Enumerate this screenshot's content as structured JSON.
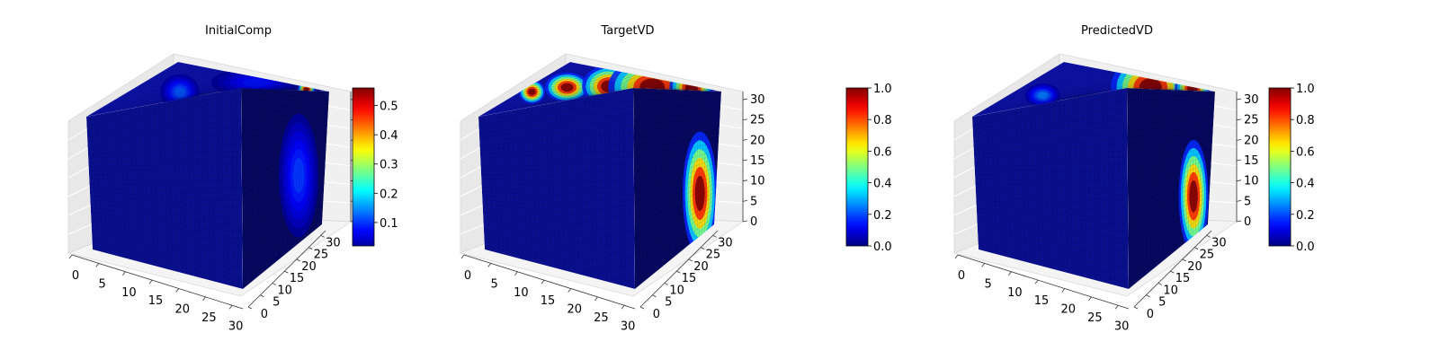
{
  "chart_data": [
    {
      "type": "3d-voxel",
      "title": "InitialComp",
      "colormap": "jet",
      "axes": {
        "x_ticks": [
          "0",
          "5",
          "10",
          "15",
          "20",
          "25",
          "30"
        ],
        "y_ticks": [
          "0",
          "5",
          "10",
          "15",
          "20",
          "25",
          "30"
        ],
        "z_ticks": [
          "",
          "",
          "",
          "",
          "",
          "",
          ""
        ],
        "range": [
          0,
          32
        ]
      },
      "colorbar": {
        "range": [
          0.02,
          0.56
        ],
        "ticks": [
          "0.1",
          "0.2",
          "0.3",
          "0.4",
          "0.5"
        ],
        "tick_values": [
          0.1,
          0.2,
          0.3,
          0.4,
          0.5
        ]
      },
      "hotspots": [
        {
          "face": "top",
          "u": 0.36,
          "v": 0.42,
          "value": 0.12,
          "su": 0.09,
          "sv": 0.12
        },
        {
          "face": "top",
          "u": 0.78,
          "v": 0.55,
          "value": 0.14,
          "su": 0.16,
          "sv": 0.18
        },
        {
          "face": "top",
          "u": 0.92,
          "v": 0.88,
          "value": 0.56,
          "su": 0.04,
          "sv": 0.05
        },
        {
          "face": "top",
          "u": 0.6,
          "v": 0.85,
          "value": 0.08,
          "su": 0.2,
          "sv": 0.1
        },
        {
          "face": "right",
          "u": 0.68,
          "v": 0.55,
          "value": 0.1,
          "su": 0.16,
          "sv": 0.22
        }
      ]
    },
    {
      "type": "3d-voxel",
      "title": "TargetVD",
      "colormap": "jet",
      "axes": {
        "x_ticks": [
          "0",
          "5",
          "10",
          "15",
          "20",
          "25",
          "30"
        ],
        "y_ticks": [
          "0",
          "5",
          "10",
          "15",
          "20",
          "25",
          "30"
        ],
        "z_ticks": [
          "0",
          "5",
          "10",
          "15",
          "20",
          "25",
          "30"
        ],
        "range": [
          0,
          32
        ]
      },
      "colorbar": {
        "range": [
          0,
          1
        ],
        "ticks": [
          "0.0",
          "0.2",
          "0.4",
          "0.6",
          "0.8",
          "1.0"
        ],
        "tick_values": [
          0,
          0.2,
          0.4,
          0.6,
          0.8,
          1.0
        ]
      },
      "hotspots": [
        {
          "face": "top",
          "u": 0.08,
          "v": 0.45,
          "value": 1.0,
          "su": 0.06,
          "sv": 0.08
        },
        {
          "face": "top",
          "u": 0.25,
          "v": 0.55,
          "value": 1.0,
          "su": 0.1,
          "sv": 0.1
        },
        {
          "face": "top",
          "u": 0.48,
          "v": 0.62,
          "value": 1.0,
          "su": 0.12,
          "sv": 0.14
        },
        {
          "face": "top",
          "u": 0.72,
          "v": 0.7,
          "value": 1.0,
          "su": 0.2,
          "sv": 0.2
        },
        {
          "face": "top",
          "u": 0.92,
          "v": 0.8,
          "value": 1.0,
          "su": 0.1,
          "sv": 0.25
        },
        {
          "face": "right",
          "u": 0.8,
          "v": 0.7,
          "value": 1.0,
          "su": 0.14,
          "sv": 0.22
        }
      ]
    },
    {
      "type": "3d-voxel",
      "title": "PredictedVD",
      "colormap": "jet",
      "axes": {
        "x_ticks": [
          "0",
          "5",
          "10",
          "15",
          "20",
          "25",
          "30"
        ],
        "y_ticks": [
          "0",
          "5",
          "10",
          "15",
          "20",
          "25",
          "30"
        ],
        "z_ticks": [
          "0",
          "5",
          "10",
          "15",
          "20",
          "25",
          "30"
        ],
        "range": [
          0,
          32
        ]
      },
      "colorbar": {
        "range": [
          0,
          1
        ],
        "ticks": [
          "0.0",
          "0.2",
          "0.4",
          "0.6",
          "0.8",
          "1.0"
        ],
        "tick_values": [
          0,
          0.2,
          0.4,
          0.6,
          0.8,
          1.0
        ]
      },
      "hotspots": [
        {
          "face": "top",
          "u": 0.25,
          "v": 0.35,
          "value": 0.25,
          "su": 0.08,
          "sv": 0.08
        },
        {
          "face": "top",
          "u": 0.75,
          "v": 0.7,
          "value": 1.0,
          "su": 0.18,
          "sv": 0.22
        },
        {
          "face": "top",
          "u": 0.92,
          "v": 0.88,
          "value": 1.0,
          "su": 0.08,
          "sv": 0.2
        },
        {
          "face": "right",
          "u": 0.8,
          "v": 0.72,
          "value": 1.0,
          "su": 0.12,
          "sv": 0.2
        }
      ]
    }
  ]
}
